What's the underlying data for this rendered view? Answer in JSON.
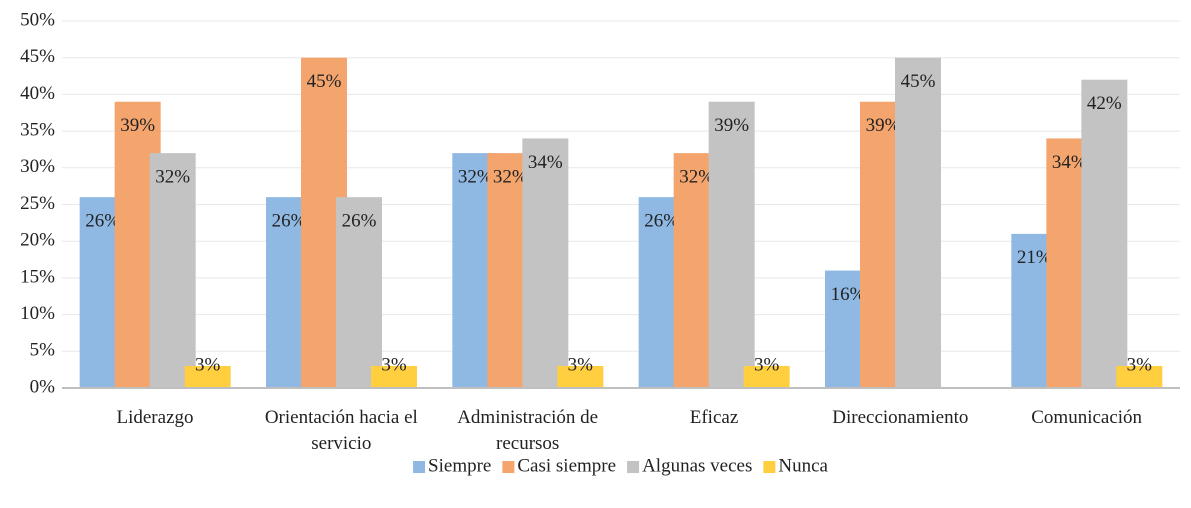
{
  "chart_data": {
    "type": "bar",
    "categories": [
      "Liderazgo",
      "Orientación hacia el servicio",
      "Administración de recursos",
      "Eficaz",
      "Direccionamiento",
      "Comunicación"
    ],
    "series": [
      {
        "name": "Siempre",
        "color": "#8fb8e3",
        "values": [
          26,
          26,
          32,
          26,
          16,
          21
        ],
        "value_labels": [
          "26%",
          "26%",
          "32%",
          "26%",
          "16%",
          "21%"
        ]
      },
      {
        "name": "Casi siempre",
        "color": "#f4a56e",
        "values": [
          39,
          45,
          32,
          32,
          39,
          34
        ],
        "value_labels": [
          "39%",
          "45%",
          "32%",
          "32%",
          "39%",
          "34%"
        ]
      },
      {
        "name": "Algunas veces",
        "color": "#c3c3c3",
        "values": [
          32,
          26,
          34,
          39,
          45,
          42
        ],
        "value_labels": [
          "32%",
          "26%",
          "34%",
          "39%",
          "45%",
          "42%"
        ]
      },
      {
        "name": "Nunca",
        "color": "#ffcf3f",
        "values": [
          3,
          3,
          3,
          3,
          null,
          3
        ],
        "value_labels": [
          "3%",
          "3%",
          "3%",
          "3%",
          null,
          "3%"
        ]
      }
    ],
    "ylim": [
      0,
      50
    ],
    "yticks": [
      {
        "value": 0,
        "label": "0%"
      },
      {
        "value": 5,
        "label": "5%"
      },
      {
        "value": 10,
        "label": "10%"
      },
      {
        "value": 15,
        "label": "15%"
      },
      {
        "value": 20,
        "label": "20%"
      },
      {
        "value": 25,
        "label": "25%"
      },
      {
        "value": 30,
        "label": "30%"
      },
      {
        "value": 35,
        "label": "35%"
      },
      {
        "value": 40,
        "label": "40%"
      },
      {
        "value": 45,
        "label": "45%"
      },
      {
        "value": 50,
        "label": "50%"
      }
    ],
    "grid": true,
    "legend": "bottom"
  }
}
